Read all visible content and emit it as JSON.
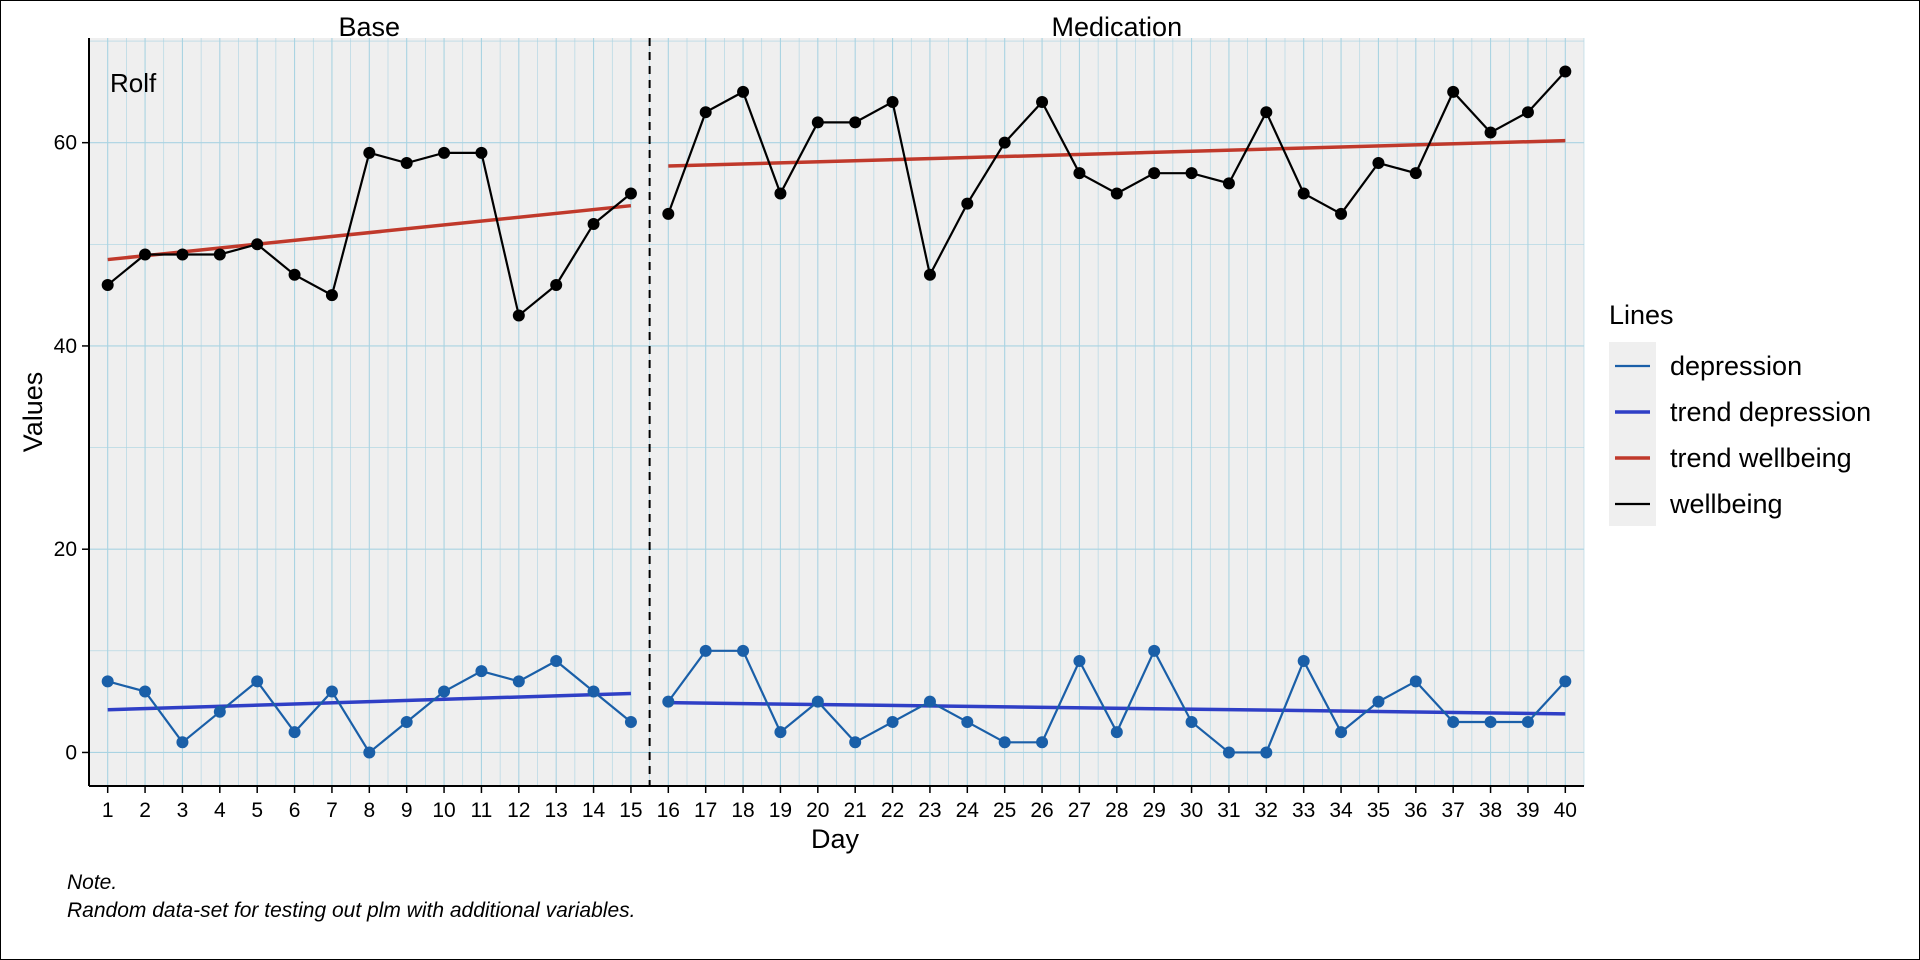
{
  "chart_data": {
    "type": "line",
    "subject_label": "Rolf",
    "phases": [
      {
        "name": "Base",
        "x_start": 1,
        "x_end": 15
      },
      {
        "name": "Medication",
        "x_start": 16,
        "x_end": 40
      }
    ],
    "x": [
      1,
      2,
      3,
      4,
      5,
      6,
      7,
      8,
      9,
      10,
      11,
      12,
      13,
      14,
      15,
      16,
      17,
      18,
      19,
      20,
      21,
      22,
      23,
      24,
      25,
      26,
      27,
      28,
      29,
      30,
      31,
      32,
      33,
      34,
      35,
      36,
      37,
      38,
      39,
      40
    ],
    "xlabel": "Day",
    "ylabel": "Values",
    "xlim": [
      0.5,
      40.5
    ],
    "ylim": [
      -3.3,
      70.3
    ],
    "yticks": [
      0,
      20,
      40,
      60
    ],
    "grid": true,
    "legend": {
      "title": "Lines",
      "position": "right",
      "entries": [
        {
          "label": "depression",
          "color": "#1a5fa8"
        },
        {
          "label": "trend depression",
          "color": "#2f3fc6"
        },
        {
          "label": "trend wellbeing",
          "color": "#c0392b"
        },
        {
          "label": "wellbeing",
          "color": "#000000"
        }
      ]
    },
    "series": [
      {
        "name": "wellbeing",
        "color": "#000000",
        "values": [
          46,
          49,
          49,
          49,
          50,
          47,
          45,
          59,
          58,
          59,
          59,
          43,
          46,
          52,
          55,
          53,
          63,
          65,
          55,
          62,
          62,
          64,
          47,
          54,
          60,
          64,
          57,
          55,
          57,
          57,
          56,
          63,
          55,
          53,
          58,
          57,
          65,
          61,
          63,
          67
        ]
      },
      {
        "name": "depression",
        "color": "#1a5fa8",
        "values": [
          7,
          6,
          1,
          4,
          7,
          2,
          6,
          0,
          3,
          6,
          8,
          7,
          9,
          6,
          3,
          5,
          10,
          10,
          2,
          5,
          1,
          3,
          5,
          3,
          1,
          1,
          9,
          2,
          10,
          3,
          0,
          0,
          9,
          2,
          5,
          7,
          3,
          3,
          3,
          7
        ]
      }
    ],
    "trends": [
      {
        "name": "trend wellbeing",
        "color": "#c0392b",
        "phase": "Base",
        "x": [
          1,
          15
        ],
        "y": [
          48.5,
          53.8
        ]
      },
      {
        "name": "trend wellbeing",
        "color": "#c0392b",
        "phase": "Medication",
        "x": [
          16,
          40
        ],
        "y": [
          57.7,
          60.2
        ]
      },
      {
        "name": "trend depression",
        "color": "#2f3fc6",
        "phase": "Base",
        "x": [
          1,
          15
        ],
        "y": [
          4.2,
          5.8
        ]
      },
      {
        "name": "trend depression",
        "color": "#2f3fc6",
        "phase": "Medication",
        "x": [
          16,
          40
        ],
        "y": [
          4.9,
          3.8
        ]
      }
    ]
  },
  "note": {
    "title": "Note.",
    "text": "Random data-set for testing out plm with additional variables."
  }
}
